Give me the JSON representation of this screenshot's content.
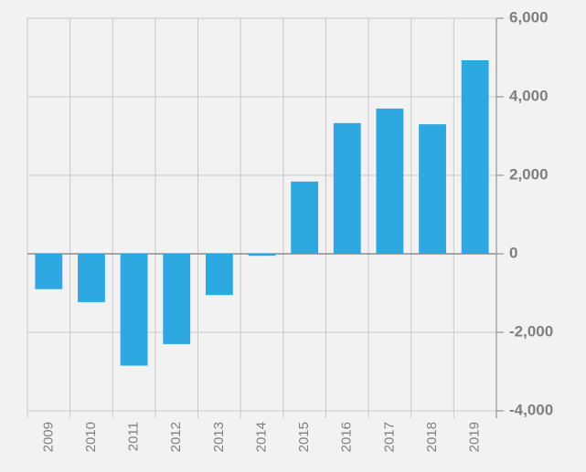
{
  "chart_data": {
    "type": "bar",
    "categories": [
      "2009",
      "2010",
      "2011",
      "2012",
      "2013",
      "2014",
      "2015",
      "2016",
      "2017",
      "2018",
      "2019"
    ],
    "values": [
      -900,
      -1230,
      -2850,
      -2300,
      -1050,
      -50,
      1840,
      3330,
      3700,
      3300,
      4930
    ],
    "color": "#2ea8e0",
    "ylim": [
      -4000,
      6000
    ],
    "yticks": [
      {
        "value": -4000,
        "label": "-4,000"
      },
      {
        "value": -2000,
        "label": "-2,000"
      },
      0,
      {
        "value": 2000,
        "label": "2,000"
      },
      {
        "value": 4000,
        "label": "4,000"
      },
      {
        "value": 6000,
        "label": "6,000"
      }
    ],
    "grid": true
  }
}
